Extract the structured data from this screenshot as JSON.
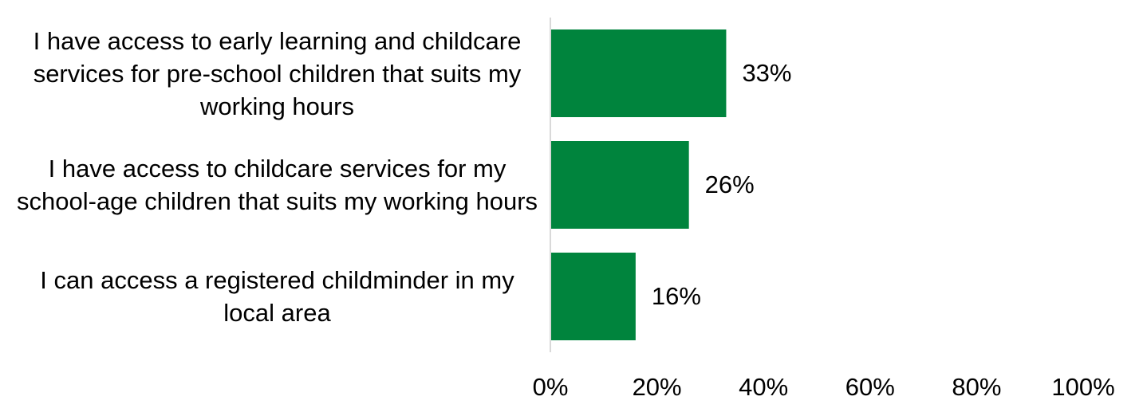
{
  "chart_data": {
    "type": "bar",
    "orientation": "horizontal",
    "categories": [
      "I have access to early learning and childcare services for pre-school children that suits my working hours",
      "I have access to childcare services for my school-age children that suits my working hours",
      "I can access a registered childminder in my local area"
    ],
    "values": [
      33,
      26,
      16
    ],
    "value_labels": [
      "33%",
      "26%",
      "16%"
    ],
    "color": "#00843d",
    "xlim": [
      0,
      100
    ],
    "xticks": [
      {
        "value": 0,
        "label": "0%"
      },
      {
        "value": 20,
        "label": "20%"
      },
      {
        "value": 40,
        "label": "40%"
      },
      {
        "value": 60,
        "label": "60%"
      },
      {
        "value": 80,
        "label": "80%"
      },
      {
        "value": 100,
        "label": "100%"
      }
    ],
    "grid": false
  }
}
